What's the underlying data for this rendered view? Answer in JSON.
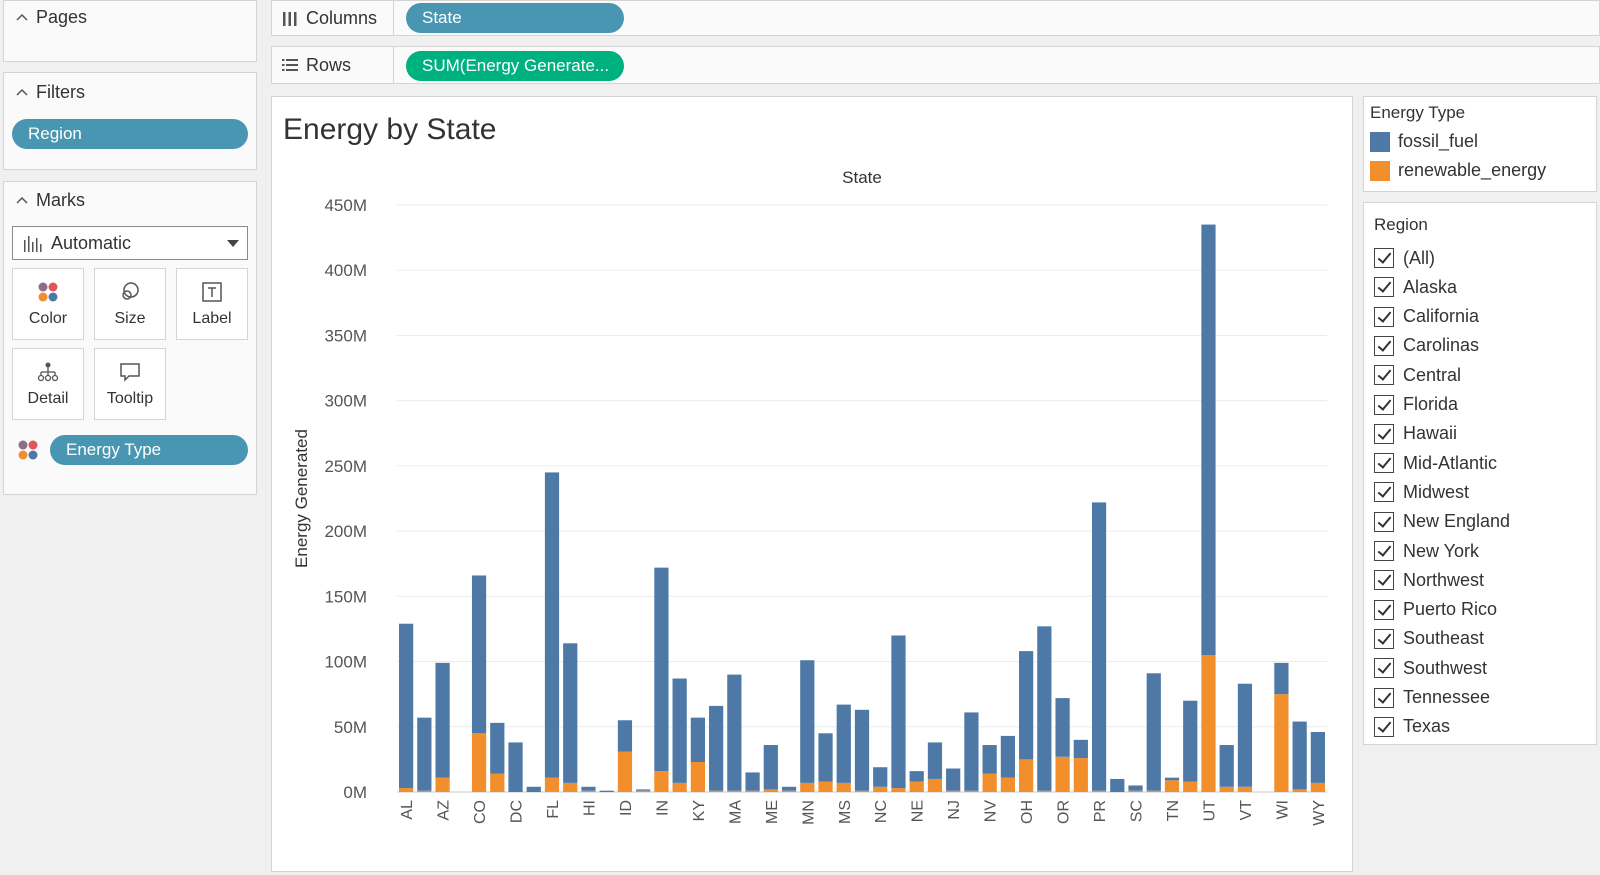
{
  "pages": {
    "header": "Pages"
  },
  "filters": {
    "header": "Filters",
    "pill": "Region"
  },
  "marks": {
    "header": "Marks",
    "mark_type": "Automatic",
    "cards": [
      "Color",
      "Size",
      "Label",
      "Detail",
      "Tooltip"
    ],
    "color_pill": "Energy Type"
  },
  "columns_shelf": {
    "label": "Columns",
    "pill": "State"
  },
  "rows_shelf": {
    "label": "Rows",
    "pill": "SUM(Energy Generate..."
  },
  "legend": {
    "title": "Energy Type",
    "items": [
      {
        "label": "fossil_fuel",
        "color": "#4e79a7"
      },
      {
        "label": "renewable_energy",
        "color": "#f28e2b"
      }
    ]
  },
  "region_filter": {
    "title": "Region",
    "items": [
      "(All)",
      "Alaska",
      "California",
      "Carolinas",
      "Central",
      "Florida",
      "Hawaii",
      "Mid-Atlantic",
      "Midwest",
      "New England",
      "New York",
      "Northwest",
      "Puerto Rico",
      "Southeast",
      "Southwest",
      "Tennessee",
      "Texas"
    ]
  },
  "chart_data": {
    "type": "bar",
    "stacked": true,
    "title": "Energy by State",
    "header": "State",
    "ylabel": "Energy Generated",
    "ylim": [
      0,
      450000000
    ],
    "y_ticks": [
      "0M",
      "50M",
      "100M",
      "150M",
      "200M",
      "250M",
      "300M",
      "350M",
      "400M",
      "450M"
    ],
    "grid": true,
    "categories": [
      "AL",
      "AK",
      "AZ",
      "AR",
      "CO",
      "CT",
      "DC",
      "DE",
      "FL",
      "GA",
      "HI",
      "IA",
      "ID",
      "IL",
      "IN",
      "KS",
      "KY",
      "LA",
      "MA",
      "MD",
      "ME",
      "MI",
      "MN",
      "MO",
      "MS",
      "MT",
      "NC",
      "ND",
      "NE",
      "NH",
      "NJ",
      "NM",
      "NV",
      "NY",
      "OH",
      "OK",
      "OR",
      "PA",
      "PR",
      "RI",
      "SC",
      "SD",
      "TN",
      "TX",
      "UT",
      "VA",
      "VT",
      "WA",
      "WI",
      "WV",
      "WY"
    ],
    "visible_tick_labels": [
      "AL",
      "AZ",
      "CO",
      "DC",
      "FL",
      "HI",
      "ID",
      "IN",
      "KY",
      "MA",
      "ME",
      "MN",
      "MS",
      "NC",
      "NE",
      "NJ",
      "NV",
      "OH",
      "OR",
      "PR",
      "SC",
      "TN",
      "UT",
      "VT",
      "WI",
      "WY"
    ],
    "series": [
      {
        "name": "fossil_fuel",
        "color": "#4e79a7",
        "values": [
          126,
          56,
          88,
          0,
          121,
          39,
          38,
          4,
          234,
          107,
          3,
          1,
          24,
          1,
          156,
          80,
          34,
          65,
          89,
          14,
          34,
          3,
          94,
          37,
          60,
          62,
          15,
          117,
          8,
          28,
          17,
          60,
          22,
          32,
          83,
          126,
          45,
          14,
          221,
          10,
          4,
          90,
          2,
          62,
          330,
          32,
          79,
          0,
          24,
          52,
          39
        ]
      },
      {
        "name": "renewable_energy",
        "color": "#f28e2b",
        "values": [
          3,
          1,
          11,
          0,
          45,
          14,
          0,
          0,
          11,
          7,
          1,
          0,
          31,
          1,
          16,
          7,
          23,
          1,
          1,
          1,
          2,
          1,
          7,
          8,
          7,
          1,
          4,
          3,
          8,
          10,
          1,
          1,
          14,
          11,
          25,
          1,
          27,
          26,
          1,
          0,
          1,
          1,
          9,
          8,
          105,
          4,
          4,
          0,
          75,
          2,
          7
        ]
      }
    ]
  }
}
